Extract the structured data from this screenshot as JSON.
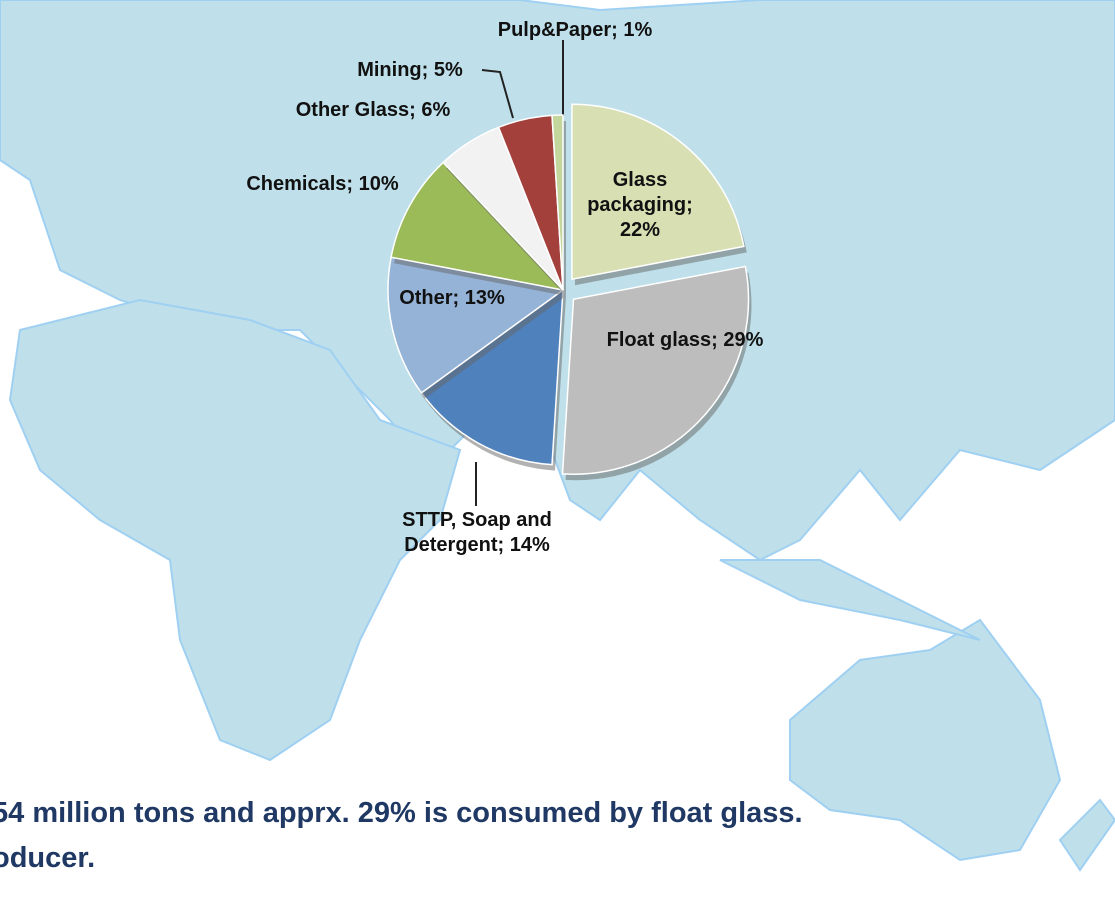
{
  "chart_data": {
    "type": "pie",
    "values": [
      22,
      29,
      14,
      13,
      10,
      6,
      5,
      1
    ],
    "value_labels": [
      "Glass packaging; 22%",
      "Float glass; 29%",
      "STTP, Soap and Detergent; 14%",
      "Other; 13%",
      "Chemicals; 10%",
      "Other Glass; 6%",
      "Mining; 5%",
      "Pulp&Paper; 1%"
    ],
    "colors": [
      "#d7dfb3",
      "#bdbdbd",
      "#4f81bd",
      "#95b3d7",
      "#9bbb59",
      "#f2f2f2",
      "#a3403c",
      "#c3d69b"
    ],
    "exploded": [
      true,
      true,
      false,
      false,
      false,
      false,
      false,
      false
    ],
    "footer": [
      "54 million tons and apprx. 29% is consumed by float glass.",
      "oducer."
    ]
  }
}
